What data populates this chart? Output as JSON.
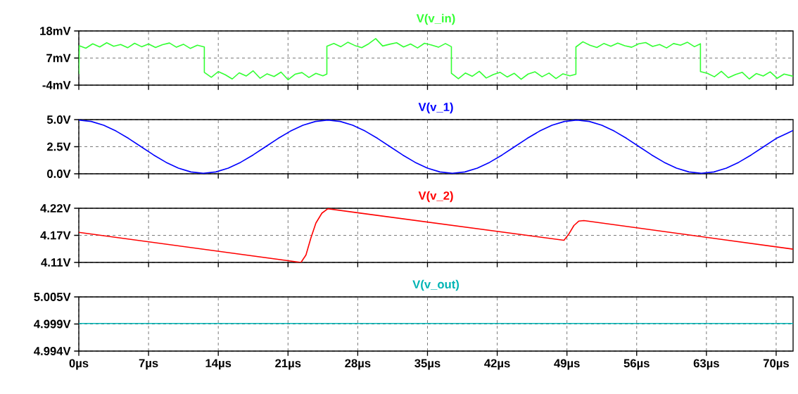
{
  "chart_data": [
    {
      "type": "line",
      "title": "V(v_in)",
      "color": "#33ff33",
      "grid": true,
      "tick_labels": "y",
      "xlim": [
        0,
        71.7
      ],
      "xticks": [
        0,
        7,
        14,
        21,
        28,
        35,
        42,
        49,
        56,
        63,
        70
      ],
      "ylim": [
        -4,
        18
      ],
      "yticks": [
        {
          "value": -4,
          "label": "-4mV"
        },
        {
          "value": 7,
          "label": "7mV"
        },
        {
          "value": 18,
          "label": "18mV"
        }
      ],
      "x": [
        0,
        0.05,
        0.7,
        1.4,
        2.1,
        2.8,
        3.5,
        4.2,
        4.9,
        5.6,
        6.3,
        7.0,
        7.7,
        8.4,
        9.1,
        9.8,
        10.5,
        11.2,
        11.9,
        12.6,
        12.6,
        13.3,
        14.0,
        14.7,
        15.4,
        16.1,
        16.8,
        17.5,
        18.2,
        18.9,
        19.6,
        20.3,
        21.0,
        21.7,
        22.4,
        23.1,
        23.8,
        24.5,
        24.9,
        24.9,
        25.6,
        26.3,
        27.0,
        27.7,
        28.4,
        29.1,
        29.8,
        30.5,
        31.2,
        31.9,
        32.6,
        33.3,
        34.0,
        34.7,
        35.4,
        36.1,
        36.8,
        37.4,
        37.4,
        38.1,
        38.8,
        39.5,
        40.2,
        40.9,
        41.6,
        42.3,
        43.0,
        43.7,
        44.4,
        45.1,
        45.8,
        46.5,
        47.2,
        47.9,
        48.6,
        49.3,
        49.9,
        49.9,
        50.6,
        51.3,
        52.0,
        52.7,
        53.4,
        54.1,
        54.8,
        55.5,
        56.2,
        56.9,
        57.6,
        58.3,
        59.0,
        59.7,
        60.4,
        61.1,
        61.8,
        62.4,
        62.4,
        63.1,
        63.8,
        64.5,
        65.2,
        65.9,
        66.6,
        67.3,
        68.0,
        68.7,
        69.4,
        70.1,
        70.8,
        71.7
      ],
      "values": [
        0.5,
        12,
        11,
        12.8,
        11.5,
        13.2,
        11.8,
        12.5,
        11.2,
        13,
        11.6,
        12.7,
        11.3,
        12.4,
        13.1,
        11.4,
        12.6,
        10.9,
        12.2,
        11.5,
        1.2,
        -0.8,
        1.5,
        0.2,
        -1.5,
        1.0,
        -0.3,
        1.8,
        -1.2,
        0.6,
        -0.5,
        1.3,
        -1.8,
        0.4,
        1.1,
        -0.9,
        0.8,
        -0.2,
        0.5,
        11.8,
        12.9,
        11.6,
        13.4,
        12.1,
        11.2,
        12.8,
        14.9,
        11.9,
        12.6,
        13.2,
        11.5,
        12.7,
        11.1,
        13.0,
        12.3,
        11.4,
        12.9,
        11.6,
        0.8,
        -1.4,
        0.9,
        -0.4,
        1.6,
        -1.1,
        0.3,
        1.2,
        -0.7,
        0.8,
        -1.6,
        0.5,
        1.4,
        -0.6,
        0.9,
        -1.3,
        0.6,
        -0.2,
        0.4,
        11.5,
        13.6,
        12.2,
        11.3,
        12.9,
        11.8,
        13.1,
        12.0,
        11.4,
        12.8,
        13.3,
        11.7,
        12.5,
        11.1,
        12.9,
        12.2,
        13.4,
        11.6,
        12.8,
        1.5,
        0.8,
        -0.6,
        1.6,
        -1.0,
        0.3,
        1.2,
        -1.5,
        0.7,
        -0.3,
        1.4,
        -1.2,
        0.5,
        -0.4
      ]
    },
    {
      "type": "line",
      "title": "V(v_1)",
      "color": "#0000ff",
      "grid": true,
      "tick_labels": "y",
      "xlim": [
        0,
        71.7
      ],
      "xticks": [
        0,
        7,
        14,
        21,
        28,
        35,
        42,
        49,
        56,
        63,
        70
      ],
      "ylim": [
        0,
        5
      ],
      "yticks": [
        {
          "value": 0,
          "label": "0.0V"
        },
        {
          "value": 2.5,
          "label": "2.5V"
        },
        {
          "value": 5,
          "label": "5.0V"
        }
      ],
      "x": [
        0,
        1.25,
        2.5,
        3.75,
        5,
        6.25,
        7.5,
        8.75,
        10,
        11.25,
        12.5,
        13.75,
        15,
        16.25,
        17.5,
        18.75,
        20,
        21.25,
        22.5,
        23.75,
        25,
        26.25,
        27.5,
        28.75,
        30,
        31.25,
        32.5,
        33.75,
        35,
        36.25,
        37.5,
        38.75,
        40,
        41.25,
        42.5,
        43.75,
        45,
        46.25,
        47.5,
        48.75,
        50,
        51.25,
        52.5,
        53.75,
        55,
        56.25,
        57.5,
        58.75,
        60,
        61.25,
        62.5,
        63.75,
        65,
        66.25,
        67.5,
        68.75,
        70,
        71.25,
        71.7
      ],
      "values": [
        4.95,
        4.83,
        4.48,
        3.94,
        3.26,
        2.5,
        1.74,
        1.06,
        0.52,
        0.17,
        0.05,
        0.17,
        0.52,
        1.06,
        1.74,
        2.5,
        3.26,
        3.94,
        4.48,
        4.83,
        4.95,
        4.83,
        4.48,
        3.94,
        3.26,
        2.5,
        1.74,
        1.06,
        0.52,
        0.17,
        0.05,
        0.17,
        0.52,
        1.06,
        1.74,
        2.5,
        3.26,
        3.94,
        4.48,
        4.83,
        4.95,
        4.83,
        4.48,
        3.94,
        3.26,
        2.5,
        1.74,
        1.06,
        0.52,
        0.17,
        0.05,
        0.17,
        0.52,
        1.06,
        1.74,
        2.5,
        3.26,
        3.8,
        4.0
      ]
    },
    {
      "type": "line",
      "title": "V(v_2)",
      "color": "#ff0000",
      "grid": true,
      "tick_labels": "y",
      "xlim": [
        0,
        71.7
      ],
      "xticks": [
        0,
        7,
        14,
        21,
        28,
        35,
        42,
        49,
        56,
        63,
        70
      ],
      "ylim": [
        4.11,
        4.22
      ],
      "yticks": [
        {
          "value": 4.11,
          "label": "4.11V"
        },
        {
          "value": 4.165,
          "label": "4.17V"
        },
        {
          "value": 4.22,
          "label": "4.22V"
        }
      ],
      "x": [
        0,
        22.3,
        22.8,
        23.3,
        23.8,
        24.4,
        25.0,
        48.7,
        49.2,
        49.7,
        50.2,
        50.7,
        71.7
      ],
      "values": [
        4.171,
        4.11,
        4.125,
        4.16,
        4.19,
        4.21,
        4.219,
        4.155,
        4.168,
        4.185,
        4.194,
        4.195,
        4.137
      ]
    },
    {
      "type": "line",
      "title": "V(v_out)",
      "color": "#00b4b4",
      "grid": true,
      "xlim": [
        0,
        71.7
      ],
      "ylim": [
        4.994,
        5.005
      ],
      "xticks": [
        {
          "value": 0,
          "label": "0µs"
        },
        {
          "value": 7,
          "label": "7µs"
        },
        {
          "value": 14,
          "label": "14µs"
        },
        {
          "value": 21,
          "label": "21µs"
        },
        {
          "value": 28,
          "label": "28µs"
        },
        {
          "value": 35,
          "label": "35µs"
        },
        {
          "value": 42,
          "label": "42µs"
        },
        {
          "value": 49,
          "label": "49µs"
        },
        {
          "value": 56,
          "label": "56µs"
        },
        {
          "value": 63,
          "label": "63µs"
        },
        {
          "value": 70,
          "label": "70µs"
        }
      ],
      "yticks": [
        {
          "value": 4.994,
          "label": "4.994V"
        },
        {
          "value": 4.9995,
          "label": "4.999V"
        },
        {
          "value": 5.005,
          "label": "5.005V"
        }
      ],
      "x": [
        0,
        71.7
      ],
      "values": [
        4.9996,
        4.9996
      ]
    }
  ]
}
